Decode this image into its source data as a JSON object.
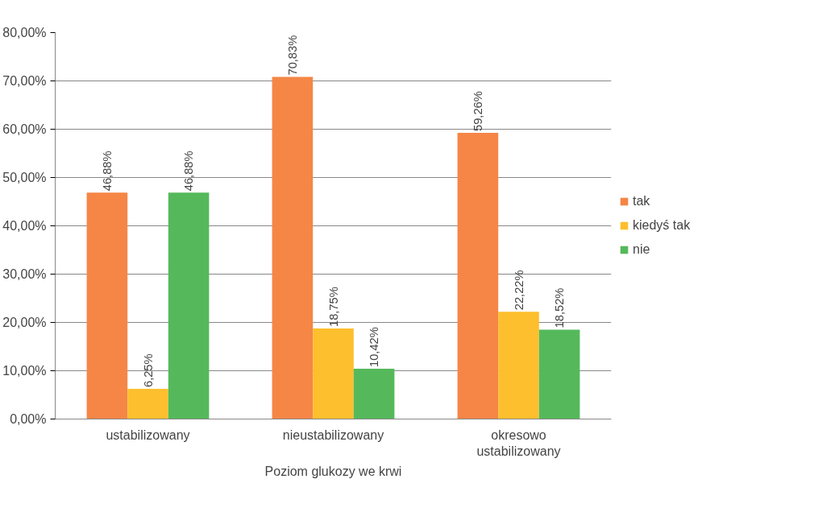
{
  "chart_data": {
    "type": "bar",
    "xlabel": "Poziom glukozy we krwi",
    "categories": [
      "ustabilizowany",
      "nieustabilizowany",
      "okresowo ustabilizowany"
    ],
    "series": [
      {
        "name": "tak",
        "color": "#f58646",
        "values": [
          46.88,
          70.83,
          59.26
        ],
        "value_labels": [
          "46,88%",
          "70,83%",
          "59,26%"
        ]
      },
      {
        "name": "kiedyś tak",
        "color": "#fdbf2d",
        "values": [
          6.25,
          18.75,
          22.22
        ],
        "value_labels": [
          "6,25%",
          "18,75%",
          "22,22%"
        ]
      },
      {
        "name": "nie",
        "color": "#55b95b",
        "values": [
          46.88,
          10.42,
          18.52
        ],
        "value_labels": [
          "46,88%",
          "10,42%",
          "18,52%"
        ]
      }
    ],
    "ylim": [
      0,
      80
    ],
    "yticks": [
      {
        "value": 0,
        "label": "0,00%"
      },
      {
        "value": 10,
        "label": "10,00%"
      },
      {
        "value": 20,
        "label": "20,00%"
      },
      {
        "value": 30,
        "label": "30,00%"
      },
      {
        "value": 40,
        "label": "40,00%"
      },
      {
        "value": 50,
        "label": "50,00%"
      },
      {
        "value": 60,
        "label": "60,00%"
      },
      {
        "value": 70,
        "label": "70,00%"
      },
      {
        "value": 80,
        "label": "80,00%"
      }
    ],
    "grid": "y",
    "legend": "right"
  }
}
